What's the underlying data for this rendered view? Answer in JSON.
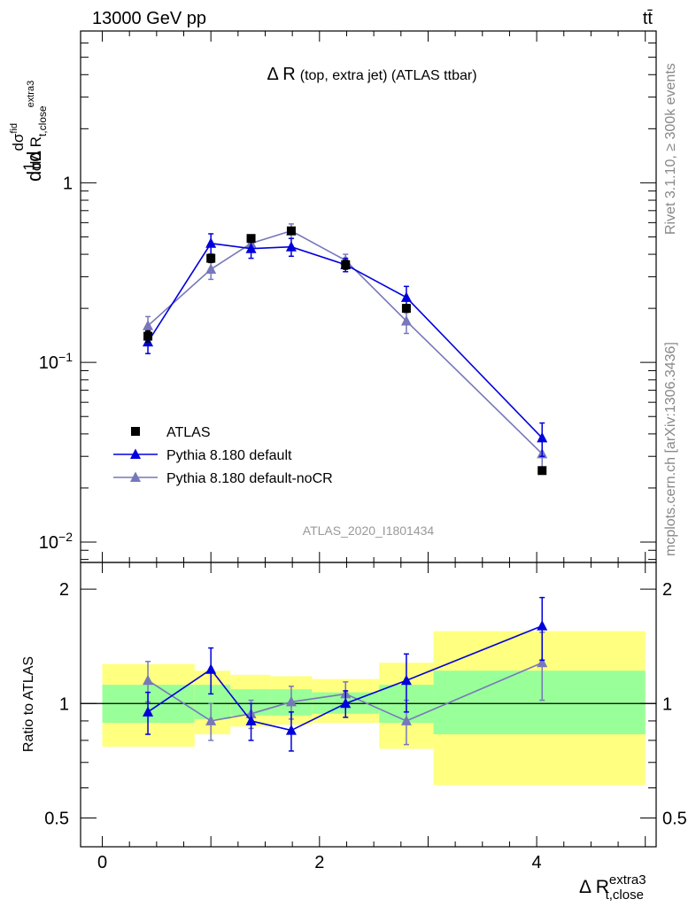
{
  "header": {
    "energy_label": "13000 GeV pp",
    "process_label": "tt̄"
  },
  "side_labels": {
    "rivet": "Rivet 3.1.10, ≥ 300k events",
    "mcplots": "mcplots.cern.ch [arXiv:1306.3436]"
  },
  "analysis_label": "ATLAS_2020_I1801434",
  "chart_data": [
    {
      "panel": "main",
      "type": "line",
      "title": "Δ R (top, extra jet) (ATLAS ttbar)",
      "title_main": "Δ R",
      "title_sub": "(top, extra jet) (ATLAS ttbar)",
      "xlabel": "Δ R",
      "xlabel_sup": "extra3",
      "xlabel_sub": "t,close",
      "ylabel": "1/σ dσ/dΔ R",
      "ylabel_parts": {
        "a": "d",
        "b": "1",
        "c": "σ",
        "d": "d",
        "e": "dσ",
        "f": "fid",
        "g": "dΔ R",
        "h": "t,close",
        "i": "extra3"
      },
      "yscale": "log",
      "xlim": [
        -0.2,
        5.1
      ],
      "ylim": [
        0.0077,
        7.0
      ],
      "y_ticks": [
        {
          "value": 0.01,
          "label": "10",
          "exp": "−2"
        },
        {
          "value": 0.1,
          "label": "10",
          "exp": "−1"
        },
        {
          "value": 1,
          "label": "1",
          "exp": ""
        }
      ],
      "series": [
        {
          "name": "ATLAS",
          "color": "#000000",
          "marker": "square",
          "x": [
            0.42,
            1.0,
            1.37,
            1.74,
            2.24,
            2.8,
            4.05
          ],
          "y": [
            0.14,
            0.38,
            0.49,
            0.54,
            0.35,
            0.2,
            0.025
          ],
          "err": [
            0.01,
            0.02,
            0.02,
            0.02,
            0.02,
            0.01,
            0.001
          ]
        },
        {
          "name": "Pythia 8.180 default",
          "color": "#0000dd",
          "marker": "triangle",
          "x": [
            0.42,
            1.0,
            1.37,
            1.74,
            2.24,
            2.8,
            4.05
          ],
          "y": [
            0.13,
            0.46,
            0.43,
            0.44,
            0.35,
            0.23,
            0.038
          ],
          "err": [
            0.018,
            0.06,
            0.05,
            0.05,
            0.03,
            0.035,
            0.008
          ]
        },
        {
          "name": "Pythia 8.180 default-noCR",
          "color": "#7777bb",
          "marker": "triangle",
          "x": [
            0.42,
            1.0,
            1.37,
            1.74,
            2.24,
            2.8,
            4.05
          ],
          "y": [
            0.16,
            0.33,
            0.46,
            0.54,
            0.37,
            0.17,
            0.031
          ],
          "err": [
            0.02,
            0.04,
            0.035,
            0.05,
            0.03,
            0.025,
            0.006
          ]
        }
      ],
      "legend_position": "middle-left"
    },
    {
      "panel": "ratio",
      "type": "line",
      "ylabel": "Ratio to ATLAS",
      "yscale": "log",
      "xlim": [
        -0.2,
        5.1
      ],
      "ylim": [
        0.42,
        2.35
      ],
      "x_ticks": [
        0,
        2,
        4
      ],
      "y_ticks": [
        {
          "value": 0.5,
          "label": "0.5"
        },
        {
          "value": 1,
          "label": "1"
        },
        {
          "value": 2,
          "label": "2"
        }
      ],
      "bands": [
        {
          "x0": 0.0,
          "x1": 0.85,
          "green": [
            0.89,
            1.12
          ],
          "yellow": [
            0.77,
            1.27
          ]
        },
        {
          "x0": 0.85,
          "x1": 1.18,
          "green": [
            0.91,
            1.12
          ],
          "yellow": [
            0.83,
            1.22
          ]
        },
        {
          "x0": 1.18,
          "x1": 1.55,
          "green": [
            0.93,
            1.09
          ],
          "yellow": [
            0.87,
            1.19
          ]
        },
        {
          "x0": 1.55,
          "x1": 1.93,
          "green": [
            0.93,
            1.09
          ],
          "yellow": [
            0.88,
            1.18
          ]
        },
        {
          "x0": 1.93,
          "x1": 2.55,
          "green": [
            0.94,
            1.07
          ],
          "yellow": [
            0.89,
            1.16
          ]
        },
        {
          "x0": 2.55,
          "x1": 3.05,
          "green": [
            0.89,
            1.12
          ],
          "yellow": [
            0.76,
            1.28
          ]
        },
        {
          "x0": 3.05,
          "x1": 5.0,
          "green": [
            0.83,
            1.22
          ],
          "yellow": [
            0.61,
            1.55
          ]
        }
      ],
      "series": [
        {
          "name": "Pythia 8.180 default",
          "color": "#0000dd",
          "x": [
            0.42,
            1.0,
            1.37,
            1.74,
            2.24,
            2.8,
            4.05
          ],
          "y": [
            0.95,
            1.23,
            0.9,
            0.85,
            1.0,
            1.15,
            1.6
          ],
          "err": [
            0.12,
            0.17,
            0.1,
            0.1,
            0.08,
            0.2,
            0.3
          ]
        },
        {
          "name": "Pythia 8.180 default-noCR",
          "color": "#7777bb",
          "x": [
            0.42,
            1.0,
            1.37,
            1.74,
            2.24,
            2.8,
            4.05
          ],
          "y": [
            1.15,
            0.9,
            0.94,
            1.01,
            1.06,
            0.9,
            1.28
          ],
          "err": [
            0.14,
            0.1,
            0.08,
            0.1,
            0.08,
            0.12,
            0.26
          ]
        }
      ]
    }
  ]
}
